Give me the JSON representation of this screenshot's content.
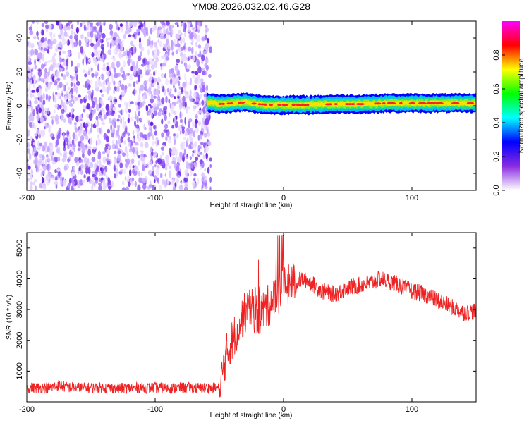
{
  "chart_data": [
    {
      "type": "heatmap",
      "title": "YM08.2026.032.02.46.G28",
      "xlabel": "Height of straight line (km)",
      "ylabel": "Frequency (Hz)",
      "xlim": [
        -200,
        150
      ],
      "ylim": [
        -50,
        50
      ],
      "x_ticks": [
        -200,
        -100,
        0,
        100
      ],
      "y_ticks": [
        -40,
        -20,
        0,
        20,
        40
      ],
      "noise_region_x": [
        -200,
        -60
      ],
      "signal_track": {
        "x": [
          -60,
          -50,
          -40,
          -30,
          -20,
          -10,
          0,
          20,
          40,
          60,
          80,
          100,
          120,
          150
        ],
        "frequency_hz": [
          2,
          1,
          1.5,
          2,
          1,
          0.5,
          0.5,
          0.5,
          1,
          1,
          1.5,
          1.5,
          1.5,
          1.5
        ]
      },
      "colorbar": {
        "label": "Normalized spectral amplitude",
        "ticks": [
          0.0,
          0.2,
          0.4,
          0.6,
          0.8
        ],
        "tick_labels": [
          "0.0",
          "0.2",
          "0.4",
          "0.6",
          "0.8"
        ],
        "range": [
          0,
          1
        ],
        "colormap": [
          "#ffffff",
          "#8a2be2",
          "#0000ff",
          "#00ffff",
          "#00ff00",
          "#ffff00",
          "#ff0000",
          "#ff00ff"
        ]
      },
      "grid": false
    },
    {
      "type": "line",
      "xlabel": "Height of straight line (km)",
      "ylabel": "SNR (10 * v/v)",
      "xlim": [
        -200,
        150
      ],
      "ylim": [
        0,
        5500
      ],
      "x_ticks": [
        -200,
        -100,
        0,
        100
      ],
      "y_ticks": [
        1000,
        2000,
        3000,
        4000,
        5000
      ],
      "series": [
        {
          "color": "#ee2222",
          "x": [
            -200,
            -190,
            -180,
            -175,
            -170,
            -160,
            -150,
            -140,
            -130,
            -120,
            -110,
            -100,
            -90,
            -80,
            -70,
            -60,
            -50,
            -48,
            -45,
            -40,
            -35,
            -30,
            -25,
            -20,
            -15,
            -10,
            -5,
            0,
            5,
            10,
            15,
            20,
            30,
            40,
            50,
            60,
            70,
            75,
            80,
            90,
            100,
            110,
            120,
            130,
            140,
            150
          ],
          "values": [
            450,
            460,
            470,
            550,
            480,
            460,
            450,
            460,
            440,
            450,
            455,
            460,
            450,
            455,
            450,
            450,
            450,
            800,
            1500,
            2000,
            2500,
            2900,
            3000,
            2800,
            3000,
            3200,
            3500,
            3700,
            3800,
            3900,
            4000,
            3900,
            3600,
            3500,
            3700,
            3800,
            3900,
            4000,
            3950,
            3800,
            3600,
            3500,
            3300,
            3100,
            2900,
            2950
          ]
        }
      ],
      "grid": false
    }
  ]
}
